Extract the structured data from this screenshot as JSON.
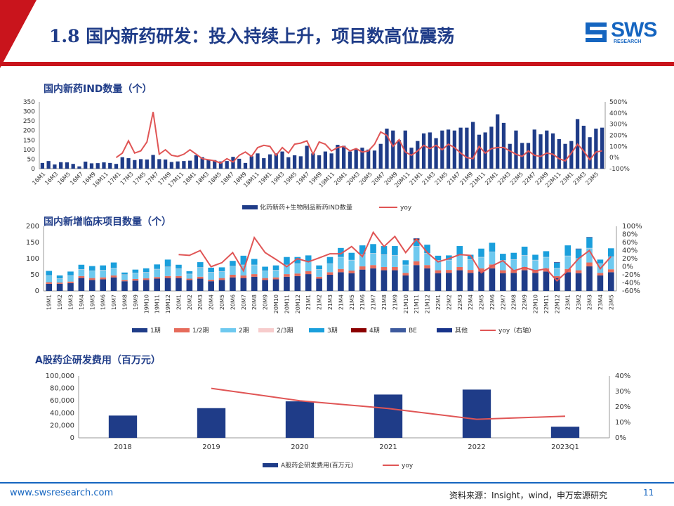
{
  "header": {
    "title": "1.8 国内新药研发：投入持续上升，项目数高位震荡",
    "logo_main": "SWS",
    "logo_sub": "RESEARCH"
  },
  "footer": {
    "url": "www.swsresearch.com",
    "source": "资料来源：Insight，wind，申万宏源研究",
    "page": "11"
  },
  "colors": {
    "navy": "#1f3c88",
    "red": "#e05555",
    "accent": "#c9141c"
  },
  "chart_data": [
    {
      "type": "bar",
      "title": "国内新药IND数量（个）",
      "ylim": [
        0,
        350
      ],
      "y_ticks": [
        0,
        50,
        100,
        150,
        200,
        250,
        300,
        350
      ],
      "y2lim": [
        -100,
        500
      ],
      "y2_ticks": [
        "-100%",
        "0%",
        "100%",
        "200%",
        "300%",
        "400%",
        "500%"
      ],
      "x_tick_labels": [
        "16M1",
        "16M3",
        "16M5",
        "16M7",
        "16M9",
        "16M11",
        "17M1",
        "17M3",
        "17M5",
        "17M7",
        "17M9",
        "17M11",
        "18M1",
        "18M3",
        "18M5",
        "18M7",
        "18M9",
        "18M11",
        "19M1",
        "19M3",
        "19M5",
        "19M7",
        "19M9",
        "19M11",
        "20M1",
        "20M3",
        "20M5",
        "20M7",
        "20M9",
        "20M11",
        "21M1",
        "21M3",
        "21M5",
        "21M7",
        "21M9",
        "21M11",
        "22M1",
        "22M3",
        "22M5",
        "22M7",
        "22M9",
        "22M11",
        "23M1",
        "23M3",
        "23M5"
      ],
      "series": [
        {
          "name": "化药新药+生物制品新药IND数量",
          "kind": "bar",
          "values": [
            30,
            40,
            22,
            34,
            33,
            25,
            12,
            37,
            28,
            29,
            33,
            30,
            25,
            60,
            55,
            45,
            50,
            48,
            72,
            50,
            48,
            35,
            38,
            40,
            42,
            70,
            60,
            48,
            45,
            38,
            40,
            62,
            52,
            30,
            65,
            80,
            55,
            75,
            80,
            90,
            60,
            70,
            65,
            120,
            80,
            70,
            90,
            80,
            125,
            120,
            90,
            105,
            110,
            100,
            95,
            130,
            210,
            200,
            150,
            200,
            110,
            145,
            185,
            190,
            160,
            200,
            205,
            200,
            215,
            215,
            245,
            178,
            190,
            220,
            285,
            240,
            130,
            200,
            135,
            135,
            205,
            180,
            200,
            185,
            155,
            130,
            145,
            260,
            225,
            165,
            210,
            215
          ]
        },
        {
          "name": "yoy",
          "kind": "line",
          "values": [
            null,
            null,
            null,
            null,
            null,
            null,
            null,
            null,
            null,
            null,
            null,
            null,
            0,
            40,
            150,
            40,
            60,
            140,
            410,
            30,
            70,
            20,
            10,
            30,
            70,
            30,
            -10,
            -20,
            -30,
            -50,
            -10,
            -40,
            20,
            50,
            10,
            90,
            110,
            100,
            20,
            90,
            40,
            120,
            130,
            150,
            30,
            140,
            120,
            60,
            90,
            100,
            60,
            80,
            50,
            60,
            120,
            230,
            200,
            100,
            160,
            50,
            20,
            60,
            110,
            80,
            110,
            70,
            120,
            90,
            40,
            0,
            -10,
            100,
            40,
            80,
            90,
            90,
            60,
            30,
            10,
            60,
            20,
            10,
            40,
            30,
            -10,
            -30,
            40,
            120,
            60,
            -20,
            50,
            60
          ]
        }
      ]
    },
    {
      "type": "bar",
      "title": "国内新增临床项目数量（个）",
      "ylim": [
        0,
        200
      ],
      "y_ticks": [
        0,
        50,
        100,
        150,
        200
      ],
      "y2lim": [
        -60,
        100
      ],
      "y2_ticks": [
        "-60%",
        "-40%",
        "-20%",
        "0%",
        "20%",
        "40%",
        "60%",
        "80%",
        "100%"
      ],
      "categories": [
        "19M1",
        "19M2",
        "19M3",
        "19M4",
        "19M5",
        "19M6",
        "19M7",
        "19M8",
        "19M9",
        "19M10",
        "19M11",
        "19M12",
        "20M1",
        "20M2",
        "20M3",
        "20M4",
        "20M5",
        "20M6",
        "20M7",
        "20M8",
        "20M9",
        "20M10",
        "20M11",
        "20M12",
        "21M1",
        "21M2",
        "21M3",
        "21M4",
        "21M5",
        "21M6",
        "21M7",
        "21M8",
        "21M9",
        "21M10",
        "21M11",
        "21M12",
        "22M1",
        "22M2",
        "22M3",
        "22M4",
        "22M5",
        "22M6",
        "22M7",
        "22M8",
        "22M9",
        "22M10",
        "22M11",
        "22M12",
        "23M1",
        "23M2",
        "23M3",
        "23M4",
        "23M5"
      ],
      "legend": [
        "1期",
        "1/2期",
        "2期",
        "2/3期",
        "3期",
        "4期",
        "BE",
        "其他",
        "yoy（右轴）"
      ],
      "series": [
        {
          "name": "1期",
          "values": [
            22,
            22,
            24,
            40,
            34,
            36,
            42,
            30,
            32,
            34,
            38,
            40,
            40,
            34,
            38,
            30,
            34,
            42,
            40,
            44,
            34,
            36,
            44,
            46,
            52,
            38,
            50,
            58,
            55,
            66,
            70,
            64,
            64,
            48,
            80,
            70,
            55,
            56,
            64,
            56,
            60,
            70,
            55,
            56,
            64,
            56,
            60,
            40,
            58,
            55,
            76,
            48,
            58
          ]
        },
        {
          "name": "1/2期",
          "values": [
            5,
            4,
            5,
            6,
            6,
            6,
            6,
            4,
            5,
            5,
            5,
            6,
            6,
            4,
            6,
            5,
            6,
            8,
            8,
            8,
            6,
            6,
            8,
            8,
            9,
            6,
            8,
            10,
            8,
            10,
            10,
            10,
            10,
            8,
            12,
            10,
            9,
            9,
            10,
            9,
            10,
            12,
            9,
            9,
            10,
            9,
            10,
            6,
            10,
            9,
            12,
            8,
            9
          ]
        },
        {
          "name": "2期",
          "values": [
            20,
            12,
            18,
            20,
            22,
            22,
            22,
            16,
            18,
            18,
            24,
            28,
            22,
            14,
            28,
            22,
            20,
            26,
            32,
            28,
            22,
            22,
            28,
            30,
            30,
            22,
            26,
            36,
            32,
            36,
            36,
            38,
            36,
            24,
            46,
            36,
            30,
            30,
            36,
            32,
            34,
            38,
            30,
            32,
            36,
            30,
            34,
            24,
            40,
            36,
            44,
            28,
            38
          ]
        },
        {
          "name": "2/3期",
          "values": [
            1,
            1,
            1,
            1,
            1,
            1,
            1,
            1,
            1,
            1,
            1,
            1,
            1,
            1,
            1,
            1,
            1,
            1,
            1,
            1,
            1,
            1,
            1,
            1,
            1,
            1,
            1,
            1,
            1,
            1,
            1,
            1,
            1,
            1,
            1,
            1,
            1,
            1,
            1,
            1,
            1,
            1,
            1,
            1,
            1,
            1,
            1,
            1,
            1,
            1,
            1,
            1,
            1
          ]
        },
        {
          "name": "3期",
          "values": [
            14,
            9,
            12,
            14,
            14,
            14,
            17,
            6,
            10,
            12,
            14,
            22,
            12,
            8,
            16,
            14,
            12,
            16,
            28,
            18,
            12,
            14,
            24,
            20,
            18,
            12,
            20,
            28,
            22,
            28,
            28,
            26,
            28,
            14,
            20,
            26,
            14,
            14,
            28,
            14,
            26,
            28,
            20,
            20,
            26,
            16,
            18,
            16,
            32,
            28,
            32,
            12,
            26
          ]
        },
        {
          "name": "4期",
          "values": [
            0,
            0,
            0,
            0,
            0,
            0,
            0,
            0,
            0,
            0,
            0,
            0,
            0,
            0,
            0,
            0,
            0,
            0,
            0,
            0,
            0,
            0,
            0,
            0,
            0,
            0,
            0,
            0,
            0,
            0,
            0,
            0,
            0,
            0,
            2,
            0,
            0,
            0,
            0,
            0,
            0,
            0,
            0,
            0,
            0,
            0,
            0,
            0,
            0,
            0,
            0,
            0,
            0
          ]
        },
        {
          "name": "BE",
          "values": [
            0,
            0,
            0,
            0,
            0,
            0,
            0,
            0,
            0,
            0,
            0,
            0,
            0,
            0,
            0,
            0,
            0,
            0,
            0,
            0,
            0,
            0,
            0,
            0,
            0,
            0,
            0,
            0,
            0,
            0,
            0,
            0,
            0,
            0,
            2,
            0,
            0,
            0,
            0,
            0,
            0,
            0,
            0,
            0,
            0,
            0,
            0,
            2,
            0,
            2,
            2,
            0,
            0
          ]
        },
        {
          "name": "其他",
          "values": [
            0,
            0,
            0,
            0,
            0,
            0,
            0,
            0,
            0,
            0,
            0,
            0,
            0,
            0,
            0,
            0,
            0,
            0,
            0,
            0,
            0,
            0,
            0,
            0,
            0,
            0,
            0,
            0,
            0,
            0,
            0,
            0,
            0,
            0,
            0,
            0,
            0,
            0,
            0,
            0,
            0,
            0,
            0,
            0,
            0,
            0,
            0,
            0,
            0,
            0,
            0,
            0,
            0
          ]
        },
        {
          "name": "yoy（右轴）",
          "kind": "line",
          "values": [
            null,
            null,
            null,
            null,
            null,
            null,
            null,
            null,
            null,
            null,
            null,
            null,
            30,
            28,
            40,
            0,
            10,
            35,
            -10,
            72,
            35,
            18,
            0,
            20,
            12,
            22,
            32,
            32,
            50,
            25,
            85,
            50,
            75,
            35,
            68,
            35,
            12,
            20,
            30,
            28,
            -15,
            2,
            15,
            -10,
            -2,
            -10,
            -5,
            -35,
            -10,
            20,
            40,
            -5,
            25
          ]
        }
      ]
    },
    {
      "type": "bar",
      "title": "A股药企研发费用（百万元）",
      "categories": [
        "2018",
        "2019",
        "2020",
        "2021",
        "2022",
        "2023Q1"
      ],
      "ylim": [
        0,
        100000
      ],
      "y_ticks": [
        "0",
        "20,000",
        "40,000",
        "60,000",
        "80,000",
        "100,000"
      ],
      "y2lim": [
        0,
        40
      ],
      "y2_ticks": [
        "0%",
        "10%",
        "20%",
        "30%",
        "40%"
      ],
      "series": [
        {
          "name": "A股药企研发费用(百万元)",
          "kind": "bar",
          "values": [
            36000,
            48000,
            59000,
            70000,
            78000,
            18000
          ]
        },
        {
          "name": "yoy",
          "kind": "line",
          "values": [
            null,
            32,
            24,
            19,
            12,
            14
          ]
        }
      ]
    }
  ]
}
